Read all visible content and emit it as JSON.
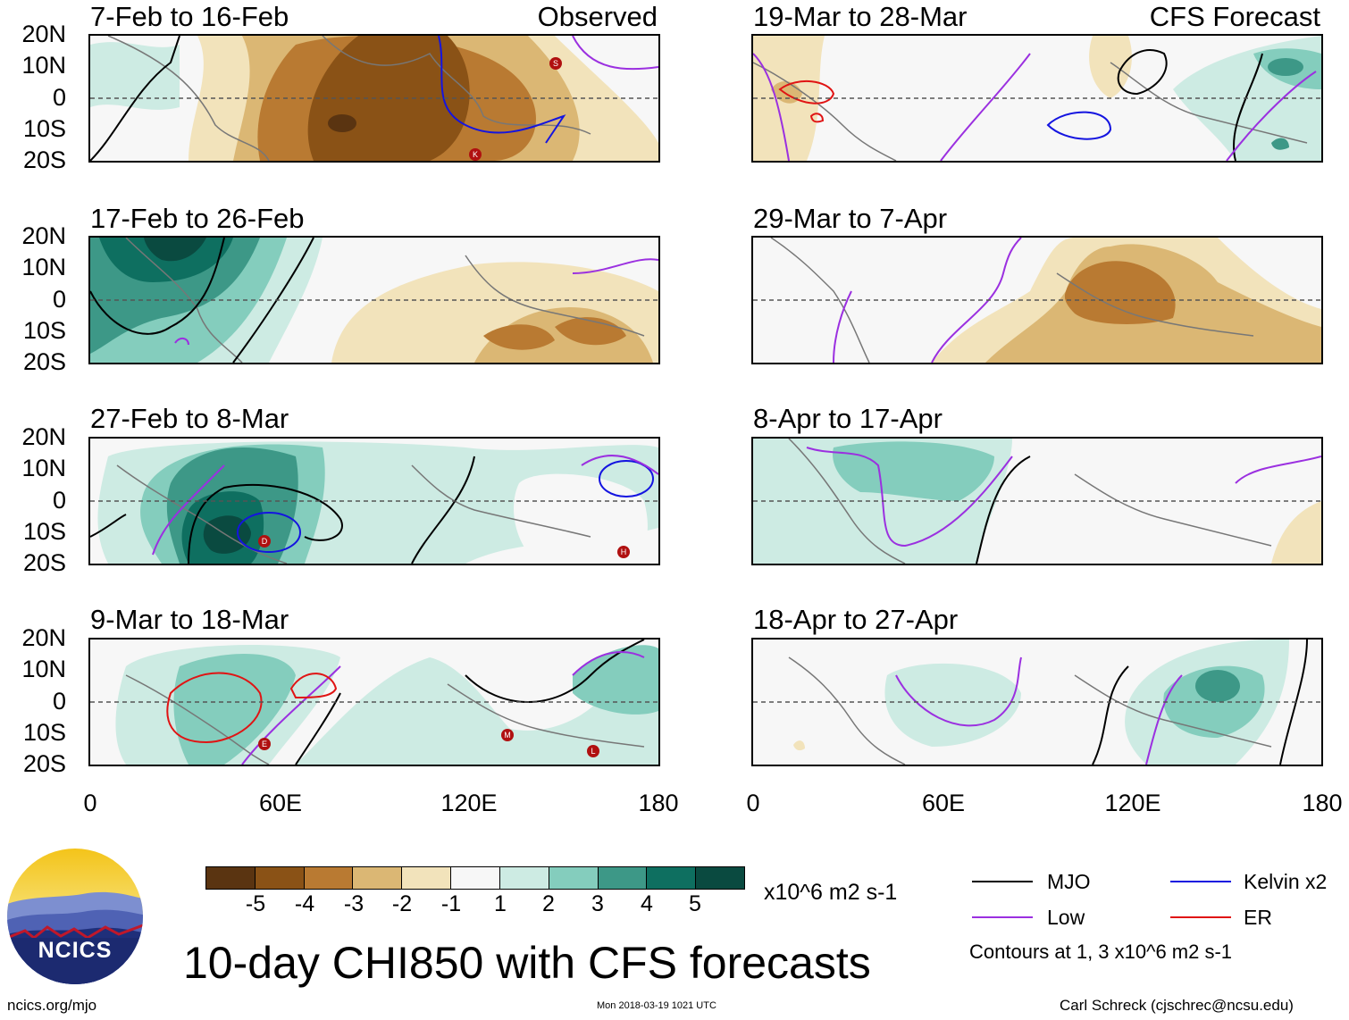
{
  "title": "10-day CHI850 with CFS forecasts",
  "units": "x10^6 m2 s-1",
  "colorbar": {
    "ticks": [
      "-5",
      "-4",
      "-3",
      "-2",
      "-1",
      "1",
      "2",
      "3",
      "4",
      "5"
    ],
    "colors": [
      "#5a3411",
      "#8a5216",
      "#b97a32",
      "#dbb774",
      "#f2e3bb",
      "#f7f7f7",
      "#cdebe3",
      "#84cdbd",
      "#3d9887",
      "#0e6f60",
      "#0a4a40"
    ]
  },
  "y_axis": [
    "20N",
    "10N",
    "0",
    "10S",
    "20S"
  ],
  "x_axis": [
    "0",
    "60E",
    "120E",
    "180"
  ],
  "left_panels": [
    {
      "period": "7-Feb to 16-Feb",
      "tag": "Observed"
    },
    {
      "period": "17-Feb to 26-Feb",
      "tag": ""
    },
    {
      "period": "27-Feb to 8-Mar",
      "tag": ""
    },
    {
      "period": "9-Mar to 18-Mar",
      "tag": ""
    }
  ],
  "right_panels": [
    {
      "period": "19-Mar to 28-Mar",
      "tag": "CFS Forecast"
    },
    {
      "period": "29-Mar to 7-Apr",
      "tag": ""
    },
    {
      "period": "8-Apr to 17-Apr",
      "tag": ""
    },
    {
      "period": "18-Apr to 27-Apr",
      "tag": ""
    }
  ],
  "cyclone_markers": [
    "S",
    "K",
    "D",
    "H",
    "E",
    "M",
    "L"
  ],
  "legend": {
    "items": [
      {
        "label": "MJO",
        "color": "#000000"
      },
      {
        "label": "Kelvin x2",
        "color": "#1414e0"
      },
      {
        "label": "Low",
        "color": "#9b30e0"
      },
      {
        "label": "ER",
        "color": "#e01414"
      }
    ],
    "note": "Contours at 1, 3 x10^6 m2 s-1"
  },
  "logo_text": "NCICS",
  "footer": {
    "site": "ncics.org/mjo",
    "timestamp": "Mon 2018-03-19 1021 UTC",
    "author": "Carl Schreck (cjschrec@ncsu.edu)"
  }
}
